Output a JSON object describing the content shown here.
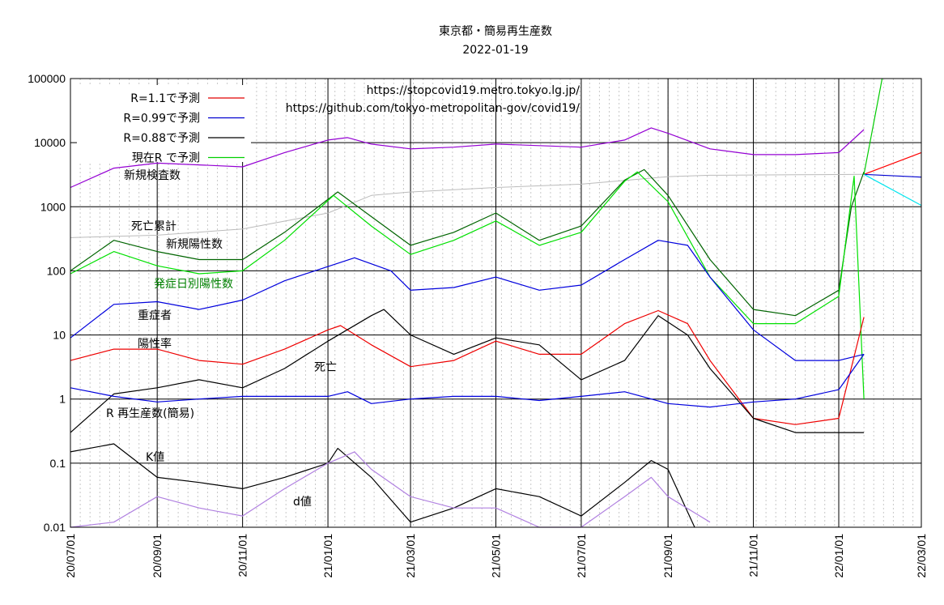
{
  "chart_data": {
    "type": "line",
    "title": "東京都・簡易再生産数",
    "subtitle": "2022-01-19",
    "urls": [
      "https://stopcovid19.metro.tokyo.lg.jp/",
      "https://github.com/tokyo-metropolitan-gov/covid19/"
    ],
    "yscale": "log",
    "ylim": [
      0.01,
      100000
    ],
    "y_ticks": [
      "100000",
      "10000",
      "1000",
      "100",
      "10",
      "1",
      "0.1",
      "0.01"
    ],
    "x_ticks": [
      "20/07/01",
      "20/09/01",
      "20/11/01",
      "21/01/01",
      "21/03/01",
      "21/05/01",
      "21/07/01",
      "21/09/01",
      "21/11/01",
      "22/01/01",
      "22/03/01"
    ],
    "grid": true,
    "legend": [
      {
        "label": "R=1.1で予測",
        "color": "#e00000"
      },
      {
        "label": "R=0.99で予測",
        "color": "#0000d0"
      },
      {
        "label": "R=0.88で予測",
        "color": "#000000"
      },
      {
        "label": "現在R で予測",
        "color": "#00d000"
      }
    ],
    "legend_position": "top-left",
    "annotations": [
      {
        "text": "新規検査数",
        "color": "#000000"
      },
      {
        "text": "死亡累計",
        "color": "#000000"
      },
      {
        "text": "新規陽性数",
        "color": "#000000"
      },
      {
        "text": "発症日別陽性数",
        "color": "#008000"
      },
      {
        "text": "重症者",
        "color": "#000000"
      },
      {
        "text": "陽性率",
        "color": "#000000"
      },
      {
        "text": "死亡",
        "color": "#000000"
      },
      {
        "text": "R 再生産数(簡易)",
        "color": "#000000"
      },
      {
        "text": "K値",
        "color": "#000000"
      },
      {
        "text": "d値",
        "color": "#000000"
      }
    ],
    "series": [
      {
        "name": "新規検査数",
        "color": "#9400d3",
        "x": [
          "2020-07-01",
          "2020-08-01",
          "2020-09-01",
          "2020-10-01",
          "2020-11-01",
          "2020-12-01",
          "2021-01-01",
          "2021-01-15",
          "2021-02-01",
          "2021-03-01",
          "2021-04-01",
          "2021-05-01",
          "2021-06-01",
          "2021-07-01",
          "2021-08-01",
          "2021-08-20",
          "2021-09-01",
          "2021-10-01",
          "2021-11-01",
          "2021-12-01",
          "2022-01-01",
          "2022-01-19"
        ],
        "values": [
          2000,
          4000,
          4800,
          4500,
          4200,
          7000,
          11000,
          12000,
          9500,
          8000,
          8500,
          9500,
          9000,
          8500,
          11000,
          17000,
          14000,
          8000,
          6500,
          6500,
          7000,
          16000
        ]
      },
      {
        "name": "死亡累計",
        "color": "#bbbbbb",
        "x": [
          "2020-07-01",
          "2020-09-01",
          "2020-11-01",
          "2021-01-01",
          "2021-02-01",
          "2021-03-01",
          "2021-05-01",
          "2021-07-01",
          "2021-09-01",
          "2021-10-01",
          "2021-12-01",
          "2022-01-19"
        ],
        "values": [
          330,
          360,
          450,
          800,
          1500,
          1700,
          2000,
          2250,
          2950,
          3100,
          3150,
          3200
        ]
      },
      {
        "name": "新規陽性数",
        "color": "#006400",
        "x": [
          "2020-07-01",
          "2020-08-01",
          "2020-09-01",
          "2020-10-01",
          "2020-11-01",
          "2020-12-01",
          "2021-01-08",
          "2021-02-01",
          "2021-03-01",
          "2021-04-01",
          "2021-05-01",
          "2021-06-01",
          "2021-07-01",
          "2021-08-01",
          "2021-08-15",
          "2021-09-01",
          "2021-10-01",
          "2021-11-01",
          "2021-12-01",
          "2022-01-01",
          "2022-01-10",
          "2022-01-19"
        ],
        "values": [
          100,
          300,
          200,
          150,
          150,
          400,
          1700,
          700,
          250,
          400,
          800,
          300,
          500,
          2600,
          3800,
          1500,
          150,
          25,
          20,
          50,
          1000,
          3500
        ]
      },
      {
        "name": "発症日別陽性数",
        "color": "#00e000",
        "x": [
          "2020-07-01",
          "2020-08-01",
          "2020-09-01",
          "2020-10-01",
          "2020-11-01",
          "2020-12-01",
          "2021-01-05",
          "2021-02-01",
          "2021-03-01",
          "2021-04-01",
          "2021-05-01",
          "2021-06-01",
          "2021-07-01",
          "2021-08-01",
          "2021-08-10",
          "2021-09-01",
          "2021-10-01",
          "2021-11-01",
          "2021-12-01",
          "2022-01-01",
          "2022-01-12",
          "2022-01-19"
        ],
        "values": [
          90,
          200,
          120,
          90,
          100,
          300,
          1500,
          500,
          180,
          300,
          600,
          250,
          400,
          2500,
          3500,
          1200,
          80,
          15,
          15,
          40,
          3000,
          1
        ]
      },
      {
        "name": "重症者",
        "color": "#0000dd",
        "x": [
          "2020-07-01",
          "2020-08-01",
          "2020-09-01",
          "2020-10-01",
          "2020-11-01",
          "2020-12-01",
          "2021-01-20",
          "2021-02-15",
          "2021-03-01",
          "2021-04-01",
          "2021-05-01",
          "2021-06-01",
          "2021-07-01",
          "2021-08-01",
          "2021-08-25",
          "2021-09-15",
          "2021-10-01",
          "2021-11-01",
          "2021-12-01",
          "2022-01-01",
          "2022-01-19"
        ],
        "values": [
          9,
          30,
          33,
          25,
          35,
          70,
          160,
          100,
          50,
          55,
          80,
          50,
          60,
          150,
          300,
          250,
          80,
          12,
          4,
          4,
          5
        ]
      },
      {
        "name": "陽性率",
        "color": "#ee0000",
        "x": [
          "2020-07-01",
          "2020-08-01",
          "2020-09-01",
          "2020-10-01",
          "2020-11-01",
          "2020-12-01",
          "2021-01-01",
          "2021-01-10",
          "2021-02-01",
          "2021-03-01",
          "2021-04-01",
          "2021-05-01",
          "2021-06-01",
          "2021-07-01",
          "2021-08-01",
          "2021-08-25",
          "2021-09-15",
          "2021-10-01",
          "2021-11-01",
          "2021-12-01",
          "2022-01-01",
          "2022-01-19"
        ],
        "values": [
          4,
          6,
          6,
          4,
          3.5,
          6,
          12,
          14,
          7,
          3.2,
          4,
          8,
          5,
          5,
          15,
          24,
          15,
          4,
          0.5,
          0.4,
          0.5,
          19
        ]
      },
      {
        "name": "死亡",
        "color": "#000000",
        "x": [
          "2020-07-01",
          "2020-08-01",
          "2020-09-01",
          "2020-10-01",
          "2020-11-01",
          "2020-12-01",
          "2021-01-01",
          "2021-02-01",
          "2021-02-10",
          "2021-03-01",
          "2021-04-01",
          "2021-05-01",
          "2021-06-01",
          "2021-07-01",
          "2021-08-01",
          "2021-08-25",
          "2021-09-15",
          "2021-10-01",
          "2021-11-01",
          "2021-12-01",
          "2022-01-01",
          "2022-01-19"
        ],
        "values": [
          0.3,
          1.2,
          1.5,
          2,
          1.5,
          3,
          8,
          20,
          25,
          10,
          5,
          9,
          7,
          2,
          4,
          20,
          10,
          3,
          0.5,
          0.3,
          0.3,
          0.3
        ]
      },
      {
        "name": "R 再生産数(簡易)",
        "color": "#0000dd",
        "x": [
          "2020-07-01",
          "2020-08-01",
          "2020-09-01",
          "2020-10-01",
          "2020-11-01",
          "2020-12-01",
          "2021-01-01",
          "2021-01-15",
          "2021-02-01",
          "2021-03-01",
          "2021-04-01",
          "2021-05-01",
          "2021-06-01",
          "2021-07-01",
          "2021-08-01",
          "2021-09-01",
          "2021-10-01",
          "2021-11-01",
          "2021-12-01",
          "2022-01-01",
          "2022-01-19"
        ],
        "values": [
          1.5,
          1.1,
          0.9,
          1.0,
          1.1,
          1.1,
          1.1,
          1.3,
          0.85,
          1.0,
          1.1,
          1.1,
          0.95,
          1.1,
          1.3,
          0.85,
          0.75,
          0.9,
          1.0,
          1.4,
          5
        ]
      },
      {
        "name": "K値",
        "color": "#000000",
        "x": [
          "2020-07-01",
          "2020-08-01",
          "2020-09-01",
          "2020-10-01",
          "2020-11-01",
          "2020-12-01",
          "2021-01-01",
          "2021-01-08",
          "2021-02-01",
          "2021-03-01",
          "2021-04-01",
          "2021-05-01",
          "2021-06-01",
          "2021-07-01",
          "2021-08-01",
          "2021-08-20",
          "2021-09-01",
          "2021-09-20"
        ],
        "values": [
          0.15,
          0.2,
          0.06,
          0.05,
          0.04,
          0.06,
          0.1,
          0.17,
          0.06,
          0.012,
          0.02,
          0.04,
          0.03,
          0.015,
          0.05,
          0.11,
          0.08,
          0.01
        ]
      },
      {
        "name": "d値",
        "color": "#b080e0",
        "x": [
          "2020-07-01",
          "2020-08-01",
          "2020-09-01",
          "2020-10-01",
          "2020-11-01",
          "2020-12-01",
          "2021-01-01",
          "2021-01-20",
          "2021-02-01",
          "2021-03-01",
          "2021-04-01",
          "2021-05-01",
          "2021-06-01",
          "2021-07-01",
          "2021-08-01",
          "2021-08-20",
          "2021-09-01",
          "2021-10-01"
        ],
        "values": [
          0.005,
          0.012,
          0.03,
          0.02,
          0.015,
          0.04,
          0.1,
          0.15,
          0.08,
          0.03,
          0.02,
          0.02,
          0.01,
          0.008,
          0.03,
          0.06,
          0.03,
          0.012
        ]
      },
      {
        "name": "R=1.1で予測",
        "color": "#ff0000",
        "x": [
          "2022-01-19",
          "2022-03-01"
        ],
        "values": [
          3200,
          7000
        ]
      },
      {
        "name": "R=0.99で予測",
        "color": "#0000d0",
        "x": [
          "2022-01-19",
          "2022-03-01"
        ],
        "values": [
          3200,
          2900
        ]
      },
      {
        "name": "R=0.88で予測",
        "color": "#00e5ee",
        "x": [
          "2022-01-19",
          "2022-03-01"
        ],
        "values": [
          3200,
          1050
        ]
      },
      {
        "name": "現在R で予測",
        "color": "#00cc00",
        "x": [
          "2022-01-19",
          "2022-02-01"
        ],
        "values": [
          3200,
          100000
        ]
      }
    ]
  }
}
